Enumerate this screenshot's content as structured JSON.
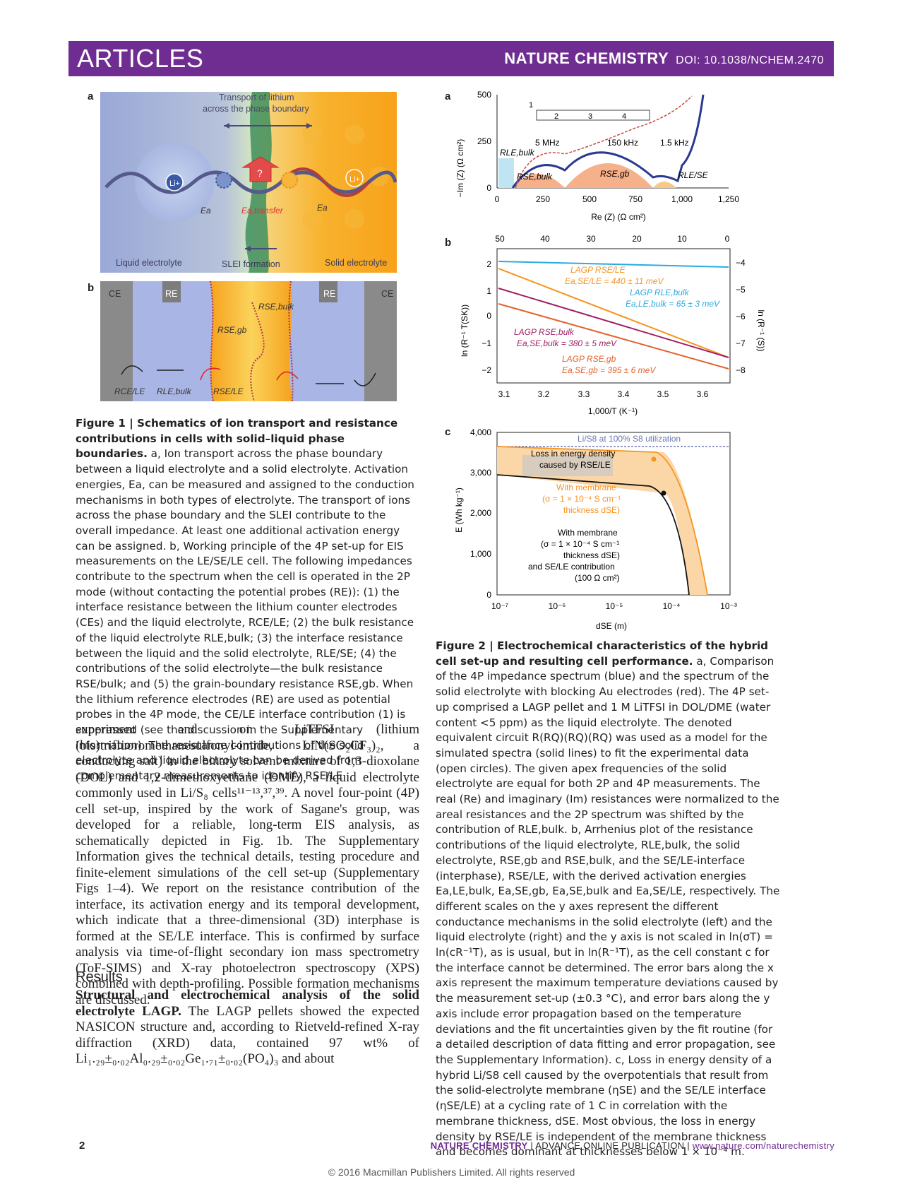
{
  "header": {
    "section": "ARTICLES",
    "journal": "NATURE CHEMISTRY",
    "doi": "DOI: 10.1038/NCHEM.2470"
  },
  "fig1": {
    "a": {
      "letter": "a",
      "transport": "Transport of lithium",
      "transport2": "across the phase boundary",
      "li": "Li+",
      "ea": "Ea",
      "ea_transfer": "Ea,transfer",
      "q": "?",
      "liquid": "Liquid electrolyte",
      "slei": "SLEI formation",
      "solid": "Solid electrolyte"
    },
    "b": {
      "letter": "b",
      "ce": "CE",
      "re": "RE",
      "rse_bulk": "RSE,bulk",
      "rse_gb": "RSE,gb",
      "rce_le": "RCE/LE",
      "rle_bulk": "RLE,bulk",
      "rse_le": "RSE/LE"
    },
    "caption": {
      "title": "Figure 1 | Schematics of ion transport and resistance contributions in cells with solid–liquid phase boundaries.",
      "text_a": " a, Ion transport across the phase boundary between a liquid electrolyte and a solid electrolyte. Activation energies, Ea, can be measured and assigned to the conduction mechanisms in both types of electrolyte. The transport of ions across the phase boundary and the SLEI contribute to the overall impedance. At least one additional activation energy can be assigned.",
      "text_b": " b, Working principle of the 4P set-up for EIS measurements on the LE/SE/LE cell. The following impedances contribute to the spectrum when the cell is operated in the 2P mode (without contacting the potential probes (RE)): (1) the interface resistance between the lithium counter electrodes (CEs) and the liquid electrolyte, RCE/LE; (2) the bulk resistance of the liquid electrolyte RLE,bulk; (3) the interface resistance between the liquid and the solid electrolyte, RLE/SE; (4) the contributions of the solid electrolyte—the bulk resistance RSE/bulk; and (5) the grain-boundary resistance RSE,gb. When the lithium reference electrodes (RE) are used as potential probes in the 4P mode, the CE/LE interface contribution (1) is suppressed (see the discussion in the Supplementary Information). The resistance contributions of the solid electrolyte and liquid electrolyte can be derived from complementary measurements to identify RSE/LE."
    }
  },
  "fig2": {
    "a": {
      "letter": "a",
      "ylabel": "−Im (Z) (Ω cm²)",
      "xlabel": "Re (Z) (Ω cm²)",
      "yticks": [
        "500",
        "250",
        "0"
      ],
      "xticks": [
        "0",
        "250",
        "500",
        "750",
        "1,000",
        "1,250"
      ],
      "circuit": [
        "1",
        "2",
        "3",
        "4"
      ],
      "f1": "5 MHz",
      "f2": "150 kHz",
      "f3": "1.5 kHz",
      "r_le_bulk": "RLE,bulk",
      "r_se_bulk": "RSE,bulk",
      "r_se_gb": "RSE,gb",
      "r_le_se": "RLE/SE"
    },
    "b": {
      "letter": "b",
      "ylabel": "ln (R⁻¹ T(SK))",
      "ylabel_right": "ln (R⁻¹ (S))",
      "xlabel": "1,000/T (K⁻¹)",
      "top_ticks": [
        "50",
        "40",
        "30",
        "20",
        "10",
        "0"
      ],
      "xticks": [
        "3.1",
        "3.2",
        "3.3",
        "3.4",
        "3.5",
        "3.6"
      ],
      "yticks": [
        "2",
        "1",
        "0",
        "−1",
        "−2"
      ],
      "yticks_right": [
        "−4",
        "−5",
        "−6",
        "−7",
        "−8"
      ],
      "l1": "LAGP RSE/LE",
      "l1e": "Ea,SE/LE = 440 ± 11 meV",
      "l2": "LAGP RLE,bulk",
      "l2e": "Ea,LE,bulk = 65 ± 3 meV",
      "l3": "LAGP RSE,bulk",
      "l3e": "Ea,SE,bulk = 380 ± 5 meV",
      "l4": "LAGP RSE,gb",
      "l4e": "Ea,SE,gb = 395 ± 6 meV"
    },
    "c": {
      "letter": "c",
      "ylabel": "E (Wh kg⁻¹)",
      "xlabel": "dSE (m)",
      "yticks": [
        "4,000",
        "3,000",
        "2,000",
        "1,000",
        "0"
      ],
      "xticks": [
        "10⁻⁷",
        "10⁻⁶",
        "10⁻⁵",
        "10⁻⁴",
        "10⁻³"
      ],
      "top_label": "Li/S8 at 100% S8 utilization",
      "loss1": "Loss in energy density",
      "loss2": "caused by RSE/LE",
      "m1": "With membrane",
      "m2": "(σ = 1 × 10⁻⁴ S cm⁻¹",
      "m3": "thickness dSE)",
      "n1": "With membrane",
      "n2": "(σ = 1 × 10⁻⁴ S cm⁻¹",
      "n3": "thickness dSE)",
      "n4": "and SE/LE contribution",
      "n5": "(100 Ω cm²)"
    },
    "caption": {
      "title": "Figure 2 | Electrochemical characteristics of the hybrid cell set-up and resulting cell performance.",
      "text": " a, Comparison of the 4P impedance spectrum (blue) and the spectrum of the solid electrolyte with blocking Au electrodes (red). The 4P set-up comprised a LAGP pellet and 1 M LiTFSI in DOL/DME (water content <5 ppm) as the liquid electrolyte. The denoted equivalent circuit R(RQ)(RQ)(RQ) was used as a model for the simulated spectra (solid lines) to fit the experimental data (open circles). The given apex frequencies of the solid electrolyte are equal for both 2P and 4P measurements. The real (Re) and imaginary (Im) resistances were normalized to the areal resistances and the 2P spectrum was shifted by the contribution of RLE,bulk. b, Arrhenius plot of the resistance contributions of the liquid electrolyte, RLE,bulk, the solid electrolyte, RSE,gb and RSE,bulk, and the SE/LE-interface (interphase), RSE/LE, with the derived activation energies Ea,LE,bulk, Ea,SE,gb, Ea,SE,bulk and Ea,SE/LE, respectively. The different scales on the y axes represent the different conductance mechanisms in the solid electrolyte (left) and the liquid electrolyte (right) and the y axis is not scaled in ln(σT) = ln(cR⁻¹T), as is usual, but in ln(R⁻¹T), as the cell constant c for the interface cannot be determined. The error bars along the x axis represent the maximum temperature deviations caused by the measurement set-up (±0.3 °C), and error bars along the y axis include error propagation based on the temperature deviations and the fit uncertainties given by the fit routine (for a detailed description of data fitting and error propagation, see the Supplementary Information). c, Loss in energy density of a hybrid Li/S8 cell caused by the overpotentials that result from the solid-electrolyte membrane (ηSE) and the SE/LE interface (ηSE/LE) at a cycling rate of 1 C in correlation with the membrane thickness, dSE. Most obvious, the loss in energy density by RSE/LE is independent of the membrane thickness and becomes dominant at thicknesses below 1 × 10⁻⁴ m."
    }
  },
  "body": {
    "para1": "experiment and on LiTFSI (lithium (bis)trifluoromethanesulfonyl-imide, LiN(SO₂CF₃)₂, a conducting salt) in the binary solvent mixture of 1,3-dioxolane (DOL) and 1,2-dimethoxyethane (DME), a liquid electrolyte commonly used in Li/S₈ cells¹¹⁻¹³,³⁷,³⁹. A novel four-point (4P) cell set-up, inspired by the work of Sagane's group, was developed for a reliable, long-term EIS analysis, as schematically depicted in Fig. 1b. The Supplementary Information gives the technical details, testing procedure and finite-element simulations of the cell set-up (Supplementary Figs 1–4). We report on the resistance contribution of the interface, its activation energy and its temporal development, which indicate that a three-dimensional (3D) interphase is formed at the SE/LE interface. This is confirmed by surface analysis via time-of-flight secondary ion mass spectrometry (ToF-SIMS) and X-ray photoelectron spectroscopy (XPS) combined with depth-profiling. Possible formation mechanisms are discussed.",
    "results_heading": "Results",
    "para2_bold": "Structural and electrochemical analysis of the solid electrolyte LAGP.",
    "para2": " The LAGP pellets showed the expected NASICON structure and, according to Rietveld-refined X-ray diffraction (XRD) data, contained 97 wt% of Li₁.₂₉±₀.₀₂Al₀.₂₉±₀.₀₂Ge₁.₇₁±₀.₀₂(PO₄)₃ and about"
  },
  "footer": {
    "page": "2",
    "journal": "NATURE CHEMISTRY",
    "issue": " | ADVANCE ONLINE PUBLICATION | ",
    "url": "www.nature.com/naturechemistry",
    "copyright": "© 2016 Macmillan Publishers Limited. All rights reserved"
  }
}
